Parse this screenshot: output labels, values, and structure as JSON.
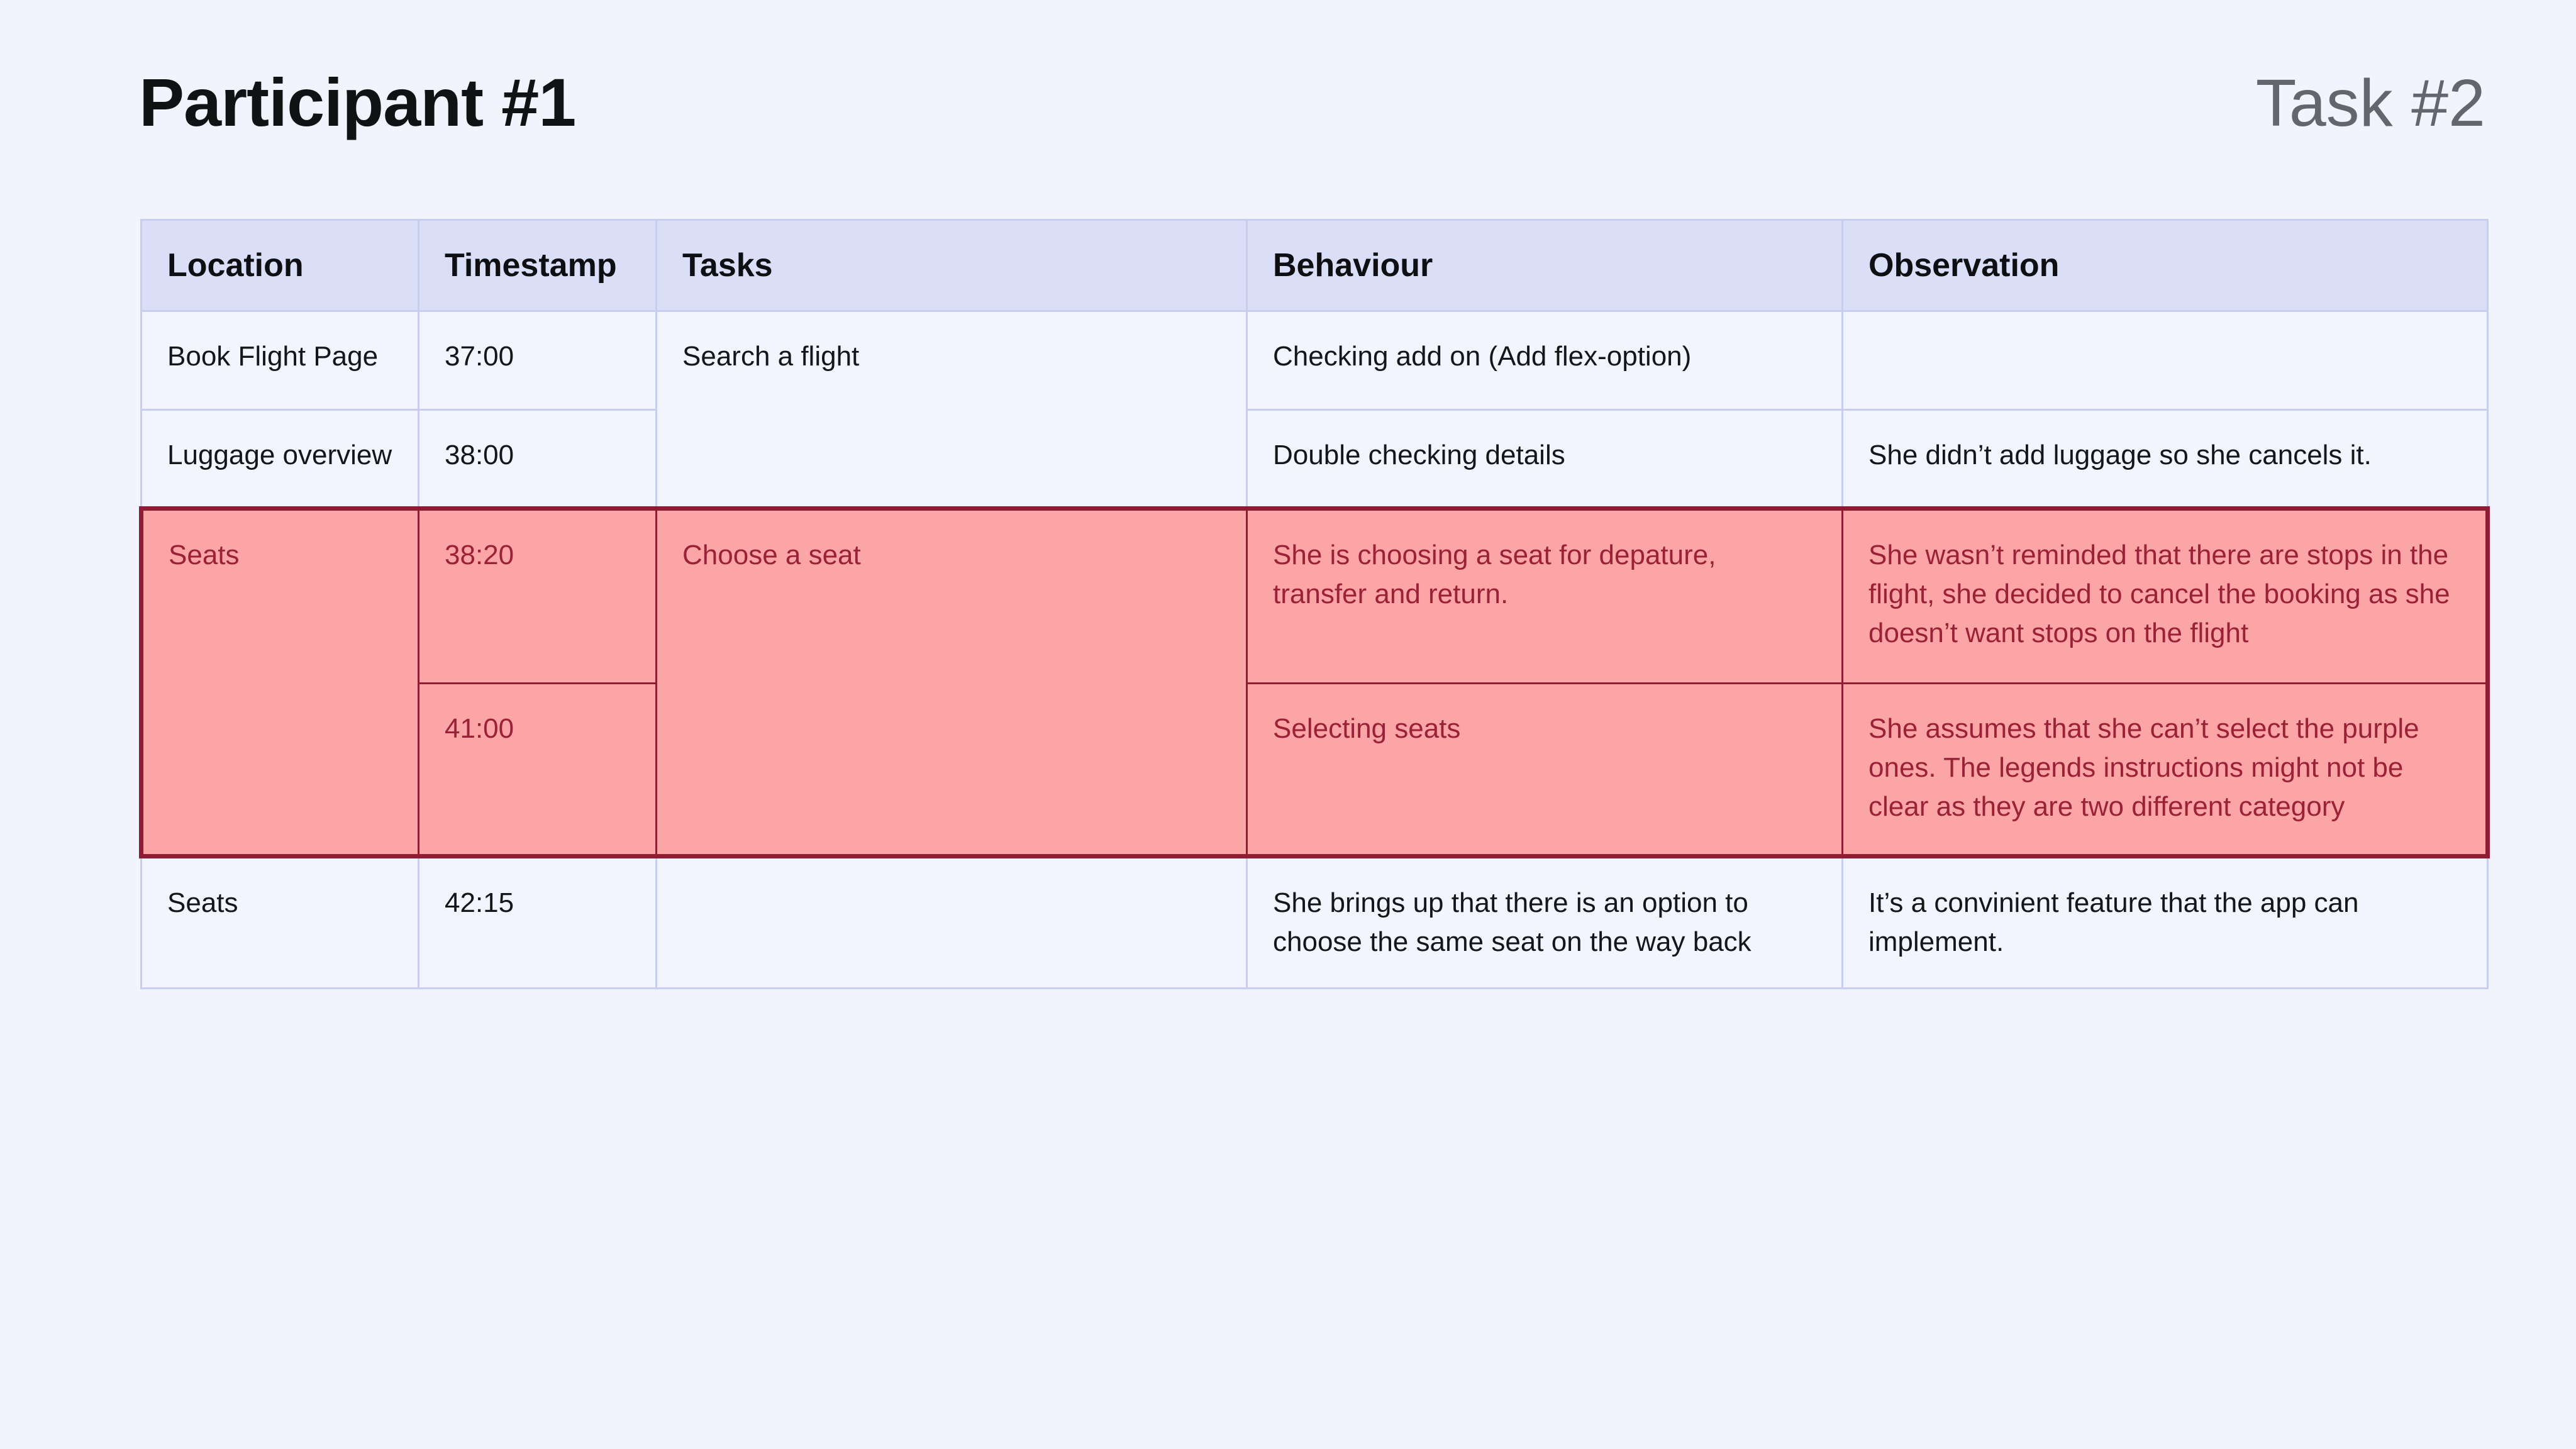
{
  "page": {
    "title": "Participant #1",
    "task_label": "Task #2",
    "background_color": "#F1F4FC",
    "header_fill_color": "#DADFF7",
    "highlight_fill_color": "#FBA5A7",
    "highlight_text_color": "#9B2136",
    "highlight_border_color": "#8E1D33"
  },
  "table": {
    "headers": [
      "Location",
      "Timestamp",
      "Tasks",
      "Behaviour",
      "Observation"
    ],
    "rows": [
      {
        "location": "Book Flight Page",
        "timestamp": "37:00",
        "tasks": "Search a flight",
        "behaviour": "Checking add on (Add flex-option)",
        "observation": ""
      },
      {
        "location": "Luggage overview",
        "timestamp": "38:00",
        "tasks": "",
        "behaviour": "Double checking details",
        "observation": "She didn’t add luggage so she cancels it."
      },
      {
        "location": "Seats",
        "timestamp": "38:20",
        "tasks": "Choose a seat",
        "behaviour": "She is choosing a seat for depature, transfer and return.",
        "observation": "She wasn’t reminded that there are stops in the flight, she decided to cancel the booking as she doesn’t want stops on the flight"
      },
      {
        "location": "",
        "timestamp": "41:00",
        "tasks": "",
        "behaviour": "Selecting seats",
        "observation": "She assumes that she can’t select the purple ones. The legends instructions might not be clear as they are two different category"
      },
      {
        "location": "Seats",
        "timestamp": "42:15",
        "tasks": "",
        "behaviour": "She brings up that there is an option to choose the same seat on the way back",
        "observation": "It’s a convinient feature that the app can implement."
      }
    ]
  }
}
